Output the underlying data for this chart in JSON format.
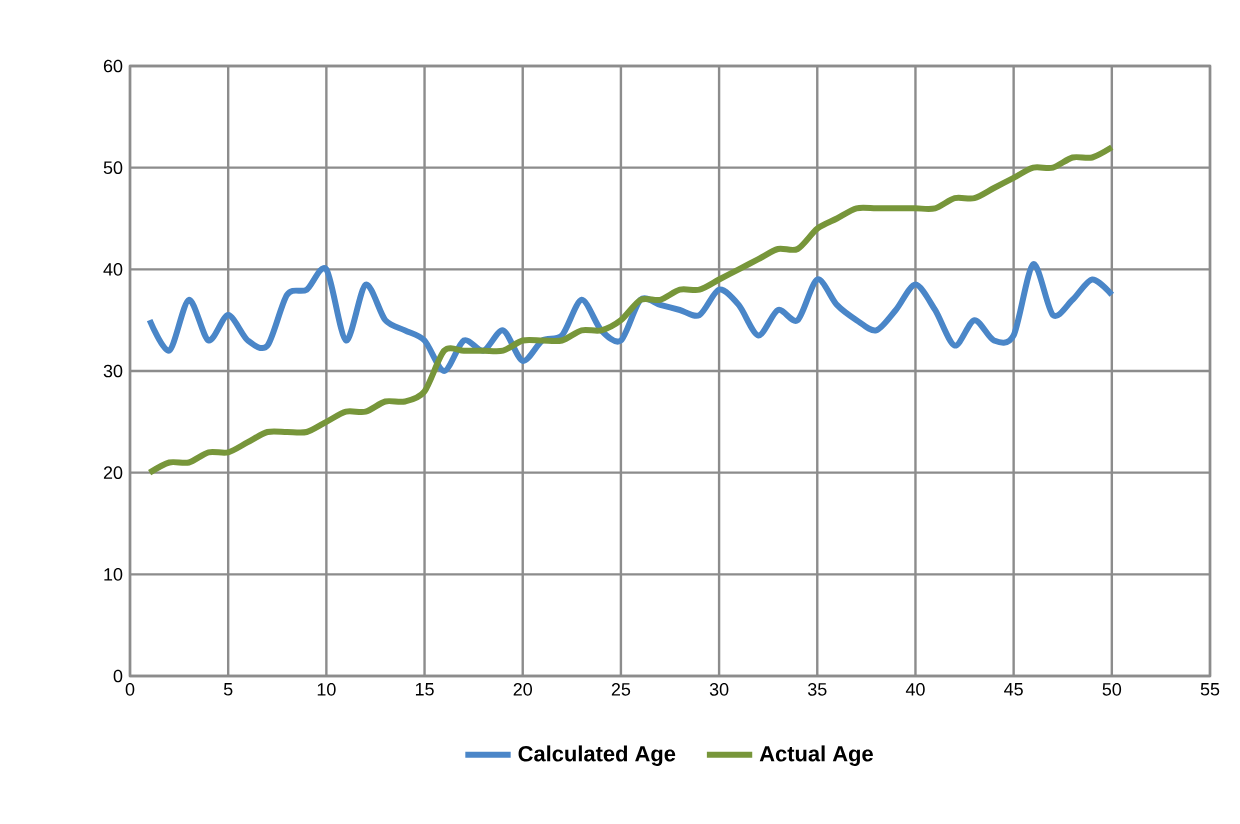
{
  "chart_data": {
    "type": "line",
    "x": [
      1,
      2,
      3,
      4,
      5,
      6,
      7,
      8,
      9,
      10,
      11,
      12,
      13,
      14,
      15,
      16,
      17,
      18,
      19,
      20,
      21,
      22,
      23,
      24,
      25,
      26,
      27,
      28,
      29,
      30,
      31,
      32,
      33,
      34,
      35,
      36,
      37,
      38,
      39,
      40,
      41,
      42,
      43,
      44,
      45,
      46,
      47,
      48,
      49,
      50
    ],
    "series": [
      {
        "name": "Calculated Age",
        "color": "#4a86c8",
        "values": [
          35,
          32,
          37,
          33,
          35.5,
          33,
          32.5,
          37.5,
          38,
          40,
          33,
          38.5,
          35,
          34,
          33,
          30,
          33,
          32,
          34,
          31,
          33,
          33.5,
          37,
          34,
          33,
          37,
          36.5,
          36,
          35.5,
          38,
          36.5,
          33.5,
          36,
          35,
          39,
          36.5,
          35,
          34,
          36,
          38.5,
          36,
          32.5,
          35,
          33,
          33.5,
          40.5,
          35.5,
          37,
          39,
          37.5
        ]
      },
      {
        "name": "Actual Age",
        "color": "#77963a",
        "values": [
          20,
          21,
          21,
          22,
          22,
          23,
          24,
          24,
          24,
          25,
          26,
          26,
          27,
          27,
          28,
          32,
          32,
          32,
          32,
          33,
          33,
          33,
          34,
          34,
          35,
          37,
          37,
          38,
          38,
          39,
          40,
          41,
          42,
          42,
          44,
          45,
          46,
          46,
          46,
          46,
          46,
          47,
          47,
          48,
          49,
          50,
          50,
          51,
          51,
          52
        ]
      }
    ],
    "xlim": [
      0,
      55
    ],
    "xticks": [
      0,
      5,
      10,
      15,
      20,
      25,
      30,
      35,
      40,
      45,
      50,
      55
    ],
    "ylim": [
      0,
      60
    ],
    "yticks": [
      0,
      10,
      20,
      30,
      40,
      50,
      60
    ],
    "grid": true,
    "legend": "bottom",
    "marker": "none",
    "line_style": "solid"
  }
}
